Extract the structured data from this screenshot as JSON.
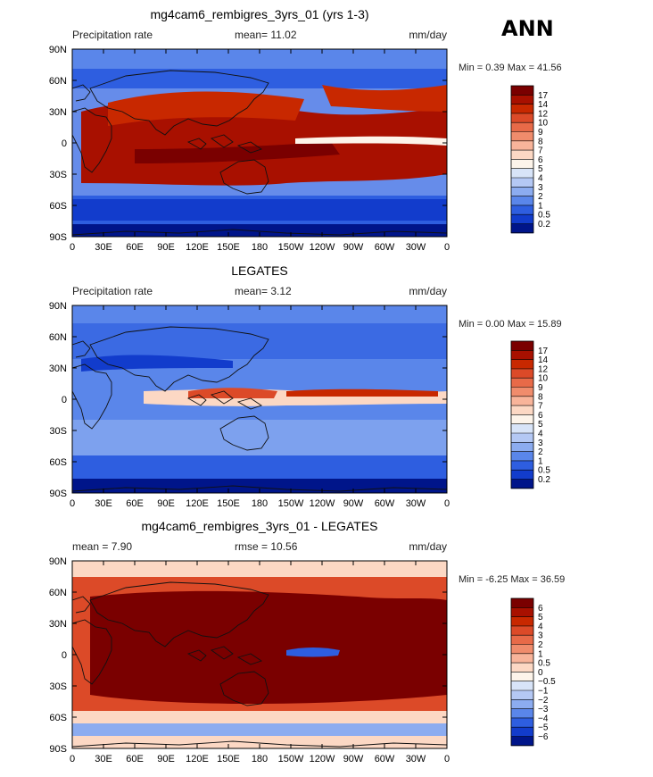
{
  "season": "ANN",
  "longitude_ticks": [
    "0",
    "30E",
    "60E",
    "90E",
    "120E",
    "150E",
    "180",
    "150W",
    "120W",
    "90W",
    "60W",
    "30W",
    "0"
  ],
  "latitude_ticks": [
    "90N",
    "60N",
    "30N",
    "0",
    "30S",
    "60S",
    "90S"
  ],
  "panels": [
    {
      "title": "mg4cam6_rembigres_3yrs_01 (yrs 1-3)",
      "left_label": "Precipitation rate",
      "center_label": "mean=   11.02",
      "right_label": "mm/day",
      "minmax": "Min =    0.39 Max =   41.56",
      "colorbar": {
        "labels": [
          "17",
          "14",
          "12",
          "10",
          "9",
          "8",
          "7",
          "6",
          "5",
          "4",
          "3",
          "2",
          "1",
          "0.5",
          "0.2"
        ],
        "colors": [
          "#7a0000",
          "#a81000",
          "#c82800",
          "#dc4a28",
          "#e86a48",
          "#f08c6c",
          "#f8b49a",
          "#fcd8c4",
          "#fdf4ea",
          "#d8e4f8",
          "#b4c8f4",
          "#8cacf0",
          "#5a86ea",
          "#2e5ee0",
          "#123ccc",
          "#00158a"
        ]
      }
    },
    {
      "title": "LEGATES",
      "left_label": "Precipitation rate",
      "center_label": "mean=    3.12",
      "right_label": "mm/day",
      "minmax": "Min =    0.00 Max =   15.89",
      "colorbar": {
        "labels": [
          "17",
          "14",
          "12",
          "10",
          "9",
          "8",
          "7",
          "6",
          "5",
          "4",
          "3",
          "2",
          "1",
          "0.5",
          "0.2"
        ],
        "colors": [
          "#7a0000",
          "#a81000",
          "#c82800",
          "#dc4a28",
          "#e86a48",
          "#f08c6c",
          "#f8b49a",
          "#fcd8c4",
          "#fdf4ea",
          "#d8e4f8",
          "#b4c8f4",
          "#8cacf0",
          "#5a86ea",
          "#2e5ee0",
          "#123ccc",
          "#00158a"
        ]
      }
    },
    {
      "title": "mg4cam6_rembigres_3yrs_01 - LEGATES",
      "left_label": "mean =    7.90",
      "center_label": "rmse =   10.56",
      "right_label": "mm/day",
      "minmax": "Min =   -6.25 Max =   36.59",
      "colorbar": {
        "labels": [
          "6",
          "5",
          "4",
          "3",
          "2",
          "1",
          "0.5",
          "0",
          "−0.5",
          "−1",
          "−2",
          "−3",
          "−4",
          "−5",
          "−6"
        ],
        "colors": [
          "#7a0000",
          "#a81000",
          "#c82800",
          "#dc4a28",
          "#e86a48",
          "#f08c6c",
          "#f8b49a",
          "#fcd8c4",
          "#fdf4ea",
          "#d8e4f8",
          "#b4c8f4",
          "#8cacf0",
          "#5a86ea",
          "#2e5ee0",
          "#123ccc",
          "#00158a"
        ]
      }
    }
  ]
}
